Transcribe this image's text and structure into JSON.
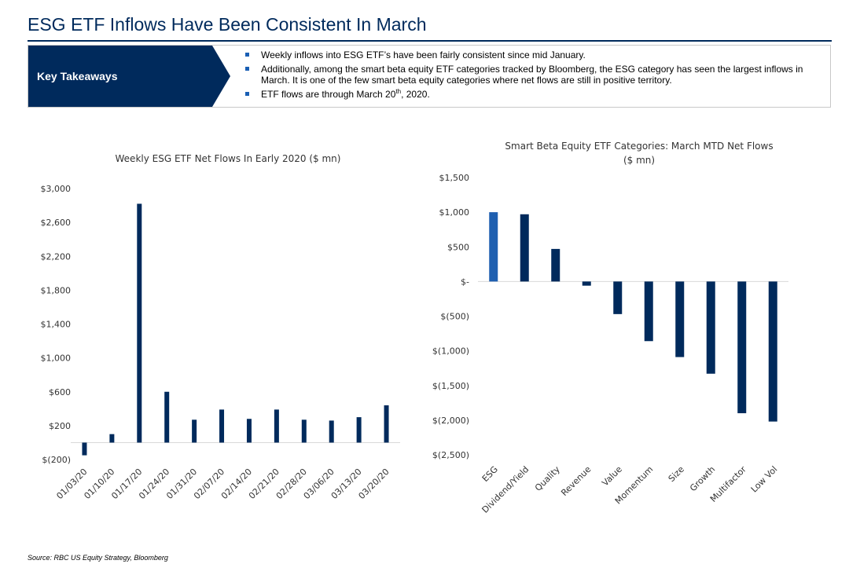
{
  "page": {
    "title": "ESG ETF Inflows Have Been Consistent In March",
    "takeaways_label": "Key Takeaways",
    "bullets": [
      "Weekly inflows into ESG ETF’s have been fairly consistent since mid January.",
      "Additionally, among the smart beta equity ETF categories tracked by Bloomberg, the ESG category has seen the largest inflows in March. It is one of the few smart beta equity categories where net flows are still in positive territory.",
      "ETF flows are through March 20"
    ],
    "bullet3_sup": "th",
    "bullet3_tail": ", 2020.",
    "source": "Source: RBC US Equity Strategy, Bloomberg"
  },
  "colors": {
    "navy": "#002a5c",
    "accent_blue": "#1f5fb0",
    "axis": "#d9d9d9"
  },
  "chart_data": [
    {
      "type": "bar",
      "title": "Weekly ESG ETF Net Flows In Early 2020 ($ mn)",
      "categories": [
        "01/03/20",
        "01/10/20",
        "01/17/20",
        "01/24/20",
        "01/31/20",
        "02/07/20",
        "02/14/20",
        "02/21/20",
        "02/28/20",
        "03/06/20",
        "03/13/20",
        "03/20/20"
      ],
      "values": [
        -150,
        100,
        2820,
        600,
        270,
        390,
        280,
        390,
        270,
        260,
        300,
        440
      ],
      "ylim": [
        -200,
        3000
      ],
      "yticks": [
        -200,
        200,
        600,
        1000,
        1400,
        1800,
        2200,
        2600,
        3000
      ],
      "ytick_labels": [
        "$(200)",
        "$200",
        "$600",
        "$1,000",
        "$1,400",
        "$1,800",
        "$2,200",
        "$2,600",
        "$3,000"
      ],
      "grid": false,
      "color": "#002a5c"
    },
    {
      "type": "bar",
      "title": "Smart Beta Equity ETF Categories: March MTD Net Flows",
      "title_line2": "($ mn)",
      "categories": [
        "ESG",
        "Dividend/Yield",
        "Quality",
        "Revenue",
        "Value",
        "Momentum",
        "Size",
        "Growth",
        "Multifactor",
        "Low Vol"
      ],
      "values": [
        1000,
        970,
        470,
        -60,
        -470,
        -860,
        -1090,
        -1330,
        -1900,
        -2020
      ],
      "ylim": [
        -2500,
        1500
      ],
      "yticks": [
        -2500,
        -2000,
        -1500,
        -1000,
        -500,
        0,
        500,
        1000,
        1500
      ],
      "ytick_labels": [
        "$(2,500)",
        "$(2,000)",
        "$(1,500)",
        "$(1,000)",
        "$(500)",
        "$-",
        "$500",
        "$1,000",
        "$1,500"
      ],
      "grid": false,
      "highlight_category": "ESG",
      "color": "#002a5c",
      "highlight_color": "#1f5fb0"
    }
  ]
}
